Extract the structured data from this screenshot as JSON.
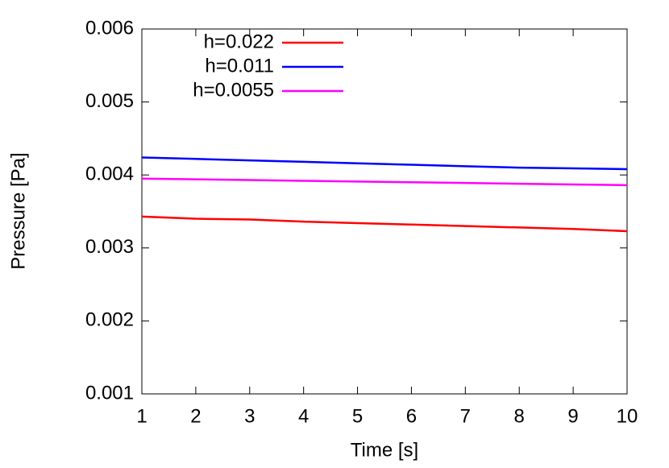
{
  "chart_data": {
    "type": "line",
    "x_label": "Time [s]",
    "y_label": "Pressure [Pa]",
    "x": [
      1,
      2,
      3,
      4,
      5,
      6,
      7,
      8,
      9,
      10
    ],
    "series": [
      {
        "name": "h=0.022",
        "color": "#ff0000",
        "values": [
          0.00343,
          0.0034,
          0.00339,
          0.00336,
          0.00334,
          0.00332,
          0.0033,
          0.00328,
          0.00326,
          0.00323
        ]
      },
      {
        "name": "h=0.011",
        "color": "#0000ff",
        "values": [
          0.00424,
          0.00422,
          0.0042,
          0.00418,
          0.00416,
          0.00414,
          0.00412,
          0.0041,
          0.00409,
          0.00408
        ]
      },
      {
        "name": "h=0.0055",
        "color": "#ff00ff",
        "values": [
          0.00395,
          0.00394,
          0.00393,
          0.00392,
          0.00391,
          0.0039,
          0.00389,
          0.00388,
          0.00387,
          0.00386
        ]
      }
    ],
    "xlim": [
      1,
      10
    ],
    "xticks": [
      1,
      2,
      3,
      4,
      5,
      6,
      7,
      8,
      9,
      10
    ],
    "ylim": [
      0.001,
      0.006
    ],
    "yticks": [
      0.001,
      0.002,
      0.003,
      0.004,
      0.005,
      0.006
    ],
    "grid": false,
    "legend": "upper-left"
  }
}
